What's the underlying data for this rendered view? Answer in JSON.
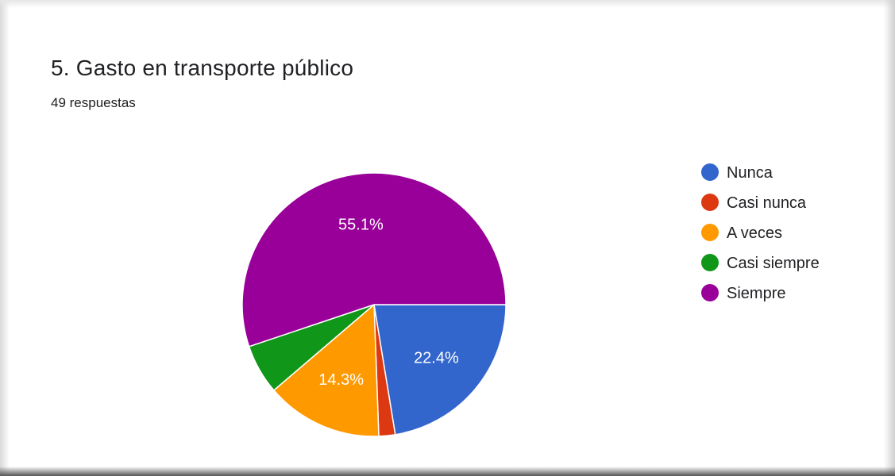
{
  "header": {
    "title": "5. Gasto en transporte público",
    "subtitle": "49 respuestas"
  },
  "chart_data": {
    "type": "pie",
    "title": "5. Gasto en transporte público",
    "subtitle": "49 respuestas",
    "legend_position": "right",
    "categories": [
      "Nunca",
      "Casi nunca",
      "A veces",
      "Casi siempre",
      "Siempre"
    ],
    "values": [
      22.4,
      2.0,
      14.3,
      6.1,
      55.1
    ],
    "value_labels": [
      "22.4%",
      "",
      "14.3%",
      "",
      "55.1%"
    ],
    "colors": [
      "#3366cc",
      "#dc3912",
      "#ff9900",
      "#109618",
      "#990099"
    ],
    "start_angle_deg": 90,
    "direction": "clockwise"
  }
}
